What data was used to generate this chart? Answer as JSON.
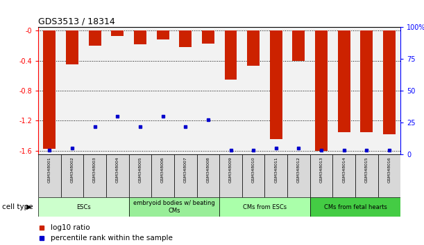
{
  "title": "GDS3513 / 18314",
  "samples": [
    "GSM348001",
    "GSM348002",
    "GSM348003",
    "GSM348004",
    "GSM348005",
    "GSM348006",
    "GSM348007",
    "GSM348008",
    "GSM348009",
    "GSM348010",
    "GSM348011",
    "GSM348012",
    "GSM348013",
    "GSM348014",
    "GSM348015",
    "GSM348016"
  ],
  "log10_ratio": [
    -1.58,
    -0.45,
    -0.2,
    -0.07,
    -0.18,
    -0.12,
    -0.22,
    -0.17,
    -0.65,
    -0.47,
    -1.45,
    -0.4,
    -1.6,
    -1.35,
    -1.35,
    -1.38
  ],
  "percentile_rank": [
    3,
    5,
    22,
    30,
    22,
    30,
    22,
    27,
    3,
    3,
    5,
    5,
    3,
    3,
    3,
    3
  ],
  "bar_color": "#cc2200",
  "dot_color": "#0000cc",
  "ylim_left": [
    -1.65,
    0.05
  ],
  "ylim_right": [
    -1.65,
    0.05
  ],
  "yticks_left": [
    -1.6,
    -1.2,
    -0.8,
    -0.4,
    0.0
  ],
  "ytick_labels_left": [
    "-1.6",
    "-1.2",
    "-0.8",
    "-0.4",
    "-0"
  ],
  "yticks_right_pos": [
    -1.65,
    -1.235,
    -0.82,
    -0.405,
    0.01
  ],
  "ytick_labels_right": [
    "0",
    "25",
    "50",
    "75",
    "100%"
  ],
  "cell_type_groups": [
    {
      "label": "ESCs",
      "start": 0,
      "end": 3
    },
    {
      "label": "embryoid bodies w/ beating\nCMs",
      "start": 4,
      "end": 7
    },
    {
      "label": "CMs from ESCs",
      "start": 8,
      "end": 11
    },
    {
      "label": "CMs from fetal hearts",
      "start": 12,
      "end": 15
    }
  ],
  "ct_colors": [
    "#ccffcc",
    "#99ee99",
    "#aaffaa",
    "#44cc44"
  ],
  "cell_type_label": "cell type",
  "legend_items": [
    {
      "label": "log10 ratio",
      "color": "#cc2200"
    },
    {
      "label": "percentile rank within the sample",
      "color": "#0000cc"
    }
  ],
  "background_color": "#ffffff",
  "bar_width": 0.55,
  "plot_facecolor": "#f2f2f2"
}
